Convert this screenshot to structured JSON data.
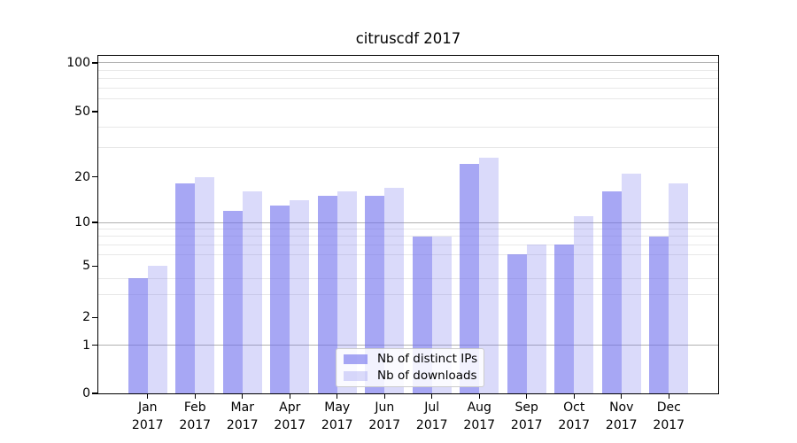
{
  "chart_data": {
    "type": "bar",
    "title": "citruscdf 2017",
    "categories": [
      "Jan 2017",
      "Feb 2017",
      "Mar 2017",
      "Apr 2017",
      "May 2017",
      "Jun 2017",
      "Jul 2017",
      "Aug 2017",
      "Sep 2017",
      "Oct 2017",
      "Nov 2017",
      "Dec 2017"
    ],
    "series": [
      {
        "name": "Nb of distinct IPs",
        "color": "#6c6cec",
        "alpha": 0.6,
        "values": [
          4,
          18,
          12,
          13,
          15,
          15,
          8,
          24,
          6,
          7,
          16,
          8
        ]
      },
      {
        "name": "Nb of downloads",
        "color": "#6c6cec",
        "alpha": 0.25,
        "values": [
          5,
          20,
          16,
          14,
          16,
          17,
          8,
          26,
          7,
          11,
          21,
          18
        ]
      }
    ],
    "y_axis": {
      "scale": "symlog",
      "tick_labels": [
        "0",
        "1",
        "2",
        "5",
        "10",
        "20",
        "50",
        "100"
      ],
      "tick_values": [
        0,
        1,
        2,
        5,
        10,
        20,
        50,
        100
      ],
      "major_grid_values": [
        1,
        10,
        100
      ],
      "minor_grid_values": [
        3,
        4,
        6,
        7,
        8,
        9,
        30,
        40,
        60,
        70,
        80,
        90
      ],
      "ylim": [
        0,
        110
      ]
    },
    "x_axis": {
      "tick_labels_line1": [
        "Jan",
        "Feb",
        "Mar",
        "Apr",
        "May",
        "Jun",
        "Jul",
        "Aug",
        "Sep",
        "Oct",
        "Nov",
        "Dec"
      ],
      "tick_labels_line2": "2017"
    },
    "legend": {
      "position": "lower center",
      "entries": [
        "Nb of distinct IPs",
        "Nb of downloads"
      ]
    },
    "grid": true,
    "colors": {
      "bar_fill_rendered_dark": "#a7a7f4",
      "bar_fill_rendered_light": "#dbdbfa",
      "grid_major": "#b1b1b1",
      "grid_minor": "#e8e8e8",
      "spine": "#000000",
      "background": "#ffffff"
    }
  }
}
